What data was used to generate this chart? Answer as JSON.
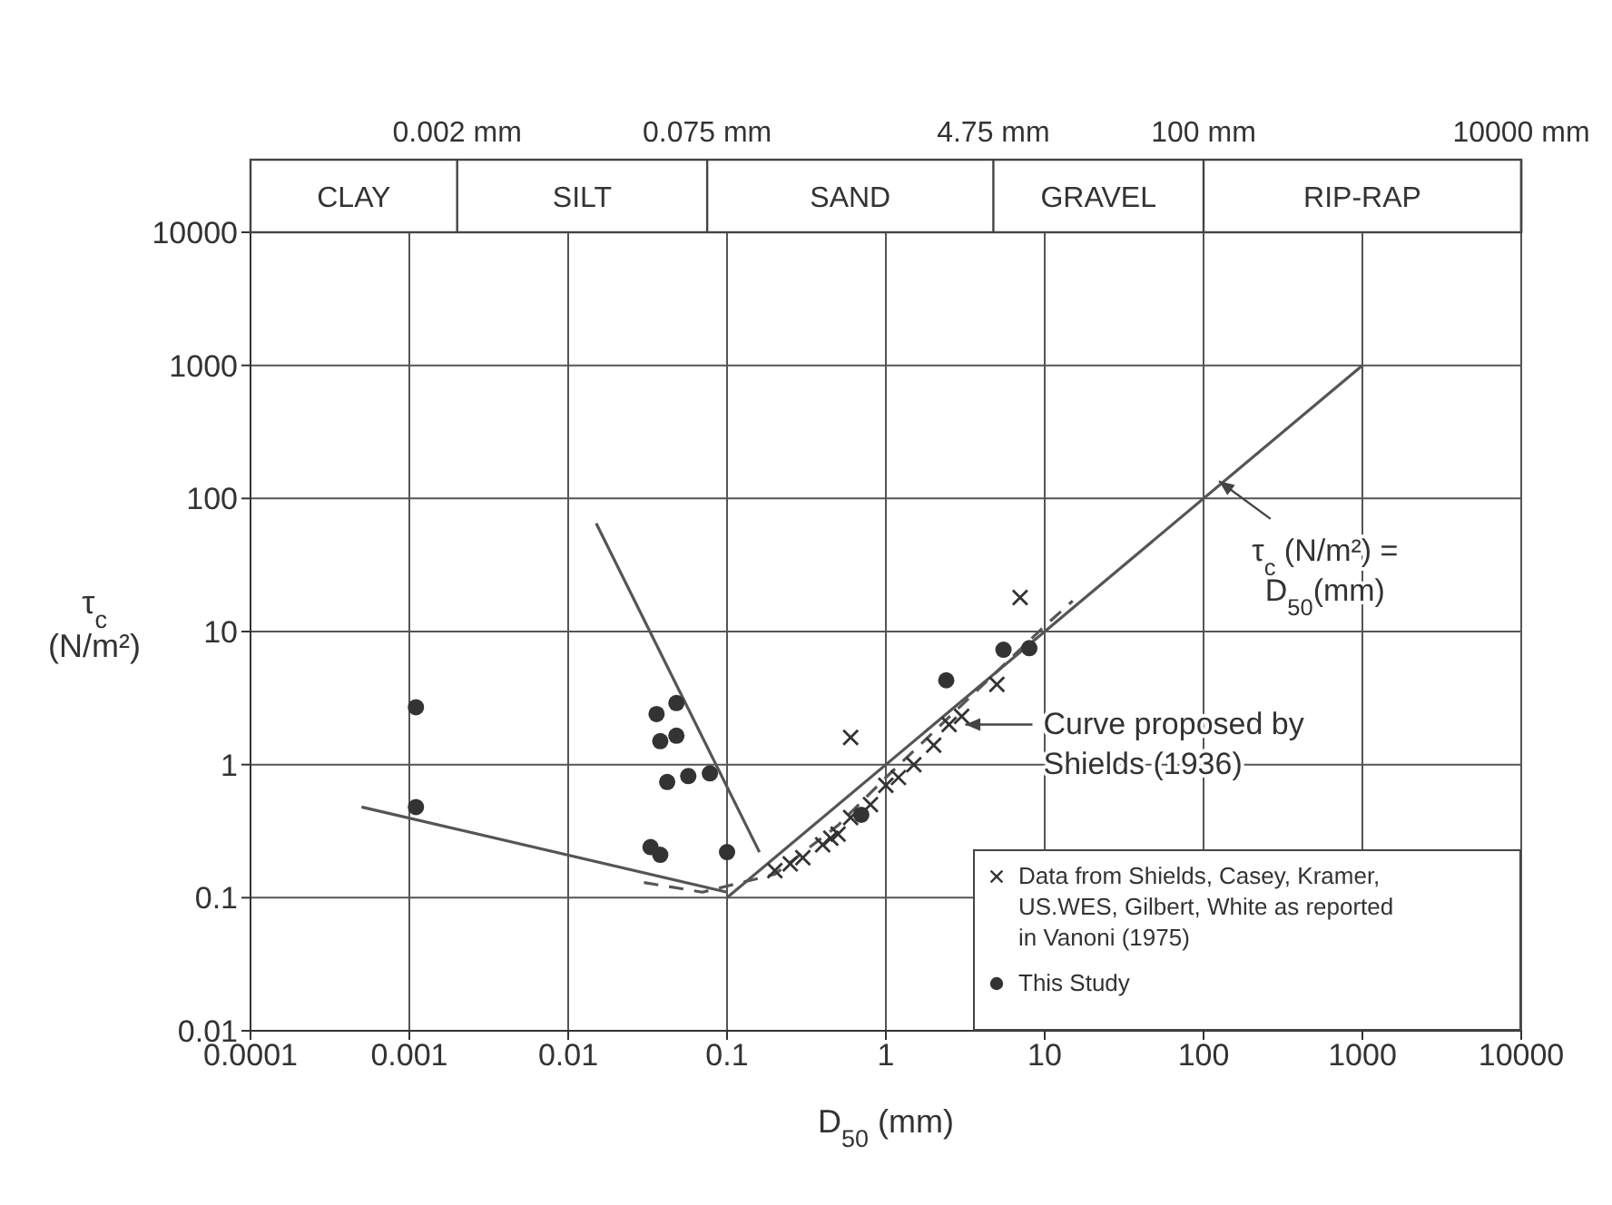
{
  "chart_data": {
    "type": "scatter",
    "xlabel": "D$_{50}$ (mm)",
    "ylabel": "τ$_{c}$ (N/m²)",
    "log": "xy",
    "grid": true,
    "legend": "bottom right",
    "xlim": [
      0.0001,
      10000
    ],
    "xticks": [
      0.0001,
      0.001,
      0.01,
      0.1,
      1,
      10,
      100,
      1000,
      10000
    ],
    "ylim": [
      0.01,
      10000
    ],
    "yticks": [
      0.01,
      0.1,
      1,
      10,
      100,
      1000,
      10000
    ],
    "ref_lines": [
      {
        "axis": "x",
        "value": 0.002,
        "label": "0.002 mm"
      },
      {
        "axis": "x",
        "value": 0.075,
        "label": "0.075 mm"
      },
      {
        "axis": "x",
        "value": 4.75,
        "label": "4.75 mm"
      },
      {
        "axis": "x",
        "value": 100,
        "label": "100 mm"
      },
      {
        "axis": "x",
        "value": 10000,
        "label": "10000 mm"
      }
    ],
    "annotations": [
      "CLAY",
      "SILT",
      "SAND",
      "GRAVEL",
      "RIP-RAP",
      {
        "text": "Curve proposed by Shields (1936)",
        "x": 3,
        "y": 2
      },
      {
        "text": "τ$_{c}$ (N/m²) = D$_{50}$(mm)",
        "x": 120,
        "y": 140
      }
    ],
    "series": [
      {
        "name": "Data from Shields, Casey, Kramer, US.WES, Gilbert, White as reported in Vanoni (1975)",
        "marker": "cross",
        "color": "#333333",
        "x": [
          0.2,
          0.25,
          0.3,
          0.4,
          0.45,
          0.5,
          0.6,
          0.6,
          0.8,
          1,
          1.2,
          1.5,
          2,
          2.5,
          3,
          5,
          7
        ],
        "values": [
          0.16,
          0.18,
          0.2,
          0.25,
          0.28,
          0.3,
          1.6,
          0.4,
          0.5,
          0.7,
          0.8,
          1,
          1.4,
          2,
          2.3,
          4,
          18
        ]
      },
      {
        "name": "This Study",
        "marker": "circle",
        "color": "#333333",
        "x": [
          0.0011,
          0.0011,
          0.036,
          0.048,
          0.038,
          0.048,
          0.042,
          0.057,
          0.078,
          0.033,
          0.038,
          0.1,
          0.7,
          2.4,
          5.5,
          8
        ],
        "values": [
          2.7,
          0.48,
          2.4,
          2.9,
          1.5,
          1.65,
          0.74,
          0.82,
          0.86,
          0.24,
          0.21,
          0.22,
          0.42,
          4.3,
          7.3,
          7.5
        ]
      },
      {
        "type": "line",
        "marker": "none",
        "line_style": "solid",
        "color": "#555555",
        "x": [
          0.1,
          1000
        ],
        "values": [
          0.1,
          1000
        ]
      },
      {
        "type": "line",
        "marker": "none",
        "line_style": "solid",
        "color": "#555555",
        "x": [
          0.0005,
          0.1
        ],
        "values": [
          0.48,
          0.11
        ]
      },
      {
        "type": "line",
        "marker": "none",
        "line_style": "solid",
        "color": "#555555",
        "x": [
          0.015,
          0.16
        ],
        "values": [
          65,
          0.22
        ]
      },
      {
        "type": "line",
        "marker": "none",
        "line_style": "dashed",
        "color": "#555555",
        "x": [
          0.03,
          0.07,
          0.2,
          0.5,
          1,
          3,
          10,
          15
        ],
        "values": [
          0.13,
          0.11,
          0.15,
          0.35,
          0.8,
          2.8,
          11,
          17
        ]
      }
    ]
  }
}
